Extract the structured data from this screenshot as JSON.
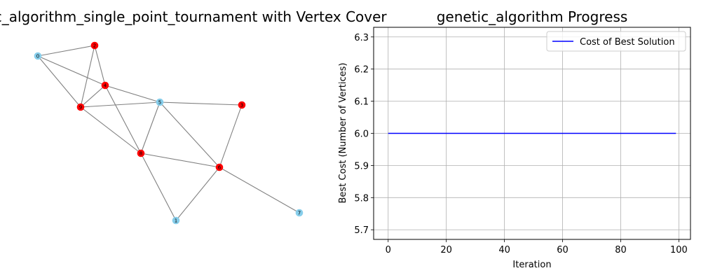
{
  "chart_data": [
    {
      "type": "graph",
      "title": "genetic_algorithm_single_point_tournament with Vertex Cover",
      "nodes": [
        {
          "id": "0",
          "in_cover": false
        },
        {
          "id": "1",
          "in_cover": false
        },
        {
          "id": "2",
          "in_cover": true
        },
        {
          "id": "3",
          "in_cover": true
        },
        {
          "id": "4",
          "in_cover": true
        },
        {
          "id": "5",
          "in_cover": false
        },
        {
          "id": "6",
          "in_cover": true
        },
        {
          "id": "7",
          "in_cover": false
        },
        {
          "id": "8",
          "in_cover": true
        },
        {
          "id": "9",
          "in_cover": true
        }
      ],
      "edges": [
        [
          "0",
          "2"
        ],
        [
          "0",
          "4"
        ],
        [
          "0",
          "9"
        ],
        [
          "2",
          "4"
        ],
        [
          "2",
          "9"
        ],
        [
          "4",
          "9"
        ],
        [
          "4",
          "5"
        ],
        [
          "4",
          "8"
        ],
        [
          "9",
          "5"
        ],
        [
          "9",
          "8"
        ],
        [
          "5",
          "3"
        ],
        [
          "5",
          "8"
        ],
        [
          "5",
          "6"
        ],
        [
          "3",
          "6"
        ],
        [
          "8",
          "6"
        ],
        [
          "8",
          "1"
        ],
        [
          "6",
          "1"
        ],
        [
          "6",
          "7"
        ]
      ],
      "colors": {
        "in_cover": "#ff0000",
        "not_in_cover": "#87ceeb",
        "edge": "#808080"
      }
    },
    {
      "type": "line",
      "title": "genetic_algorithm Progress",
      "xlabel": "Iteration",
      "ylabel": "Best Cost (Number of Vertices)",
      "xlim": [
        -5,
        104
      ],
      "ylim": [
        5.67,
        6.33
      ],
      "xticks": [
        0,
        20,
        40,
        60,
        80,
        100
      ],
      "yticks": [
        5.7,
        5.8,
        5.9,
        6.0,
        6.1,
        6.2,
        6.3
      ],
      "grid": true,
      "legend": "top-right",
      "series": [
        {
          "name": "Cost of Best Solution",
          "color": "#0000ff",
          "x_start": 0,
          "x_end": 99,
          "value": 6.0
        }
      ]
    }
  ]
}
